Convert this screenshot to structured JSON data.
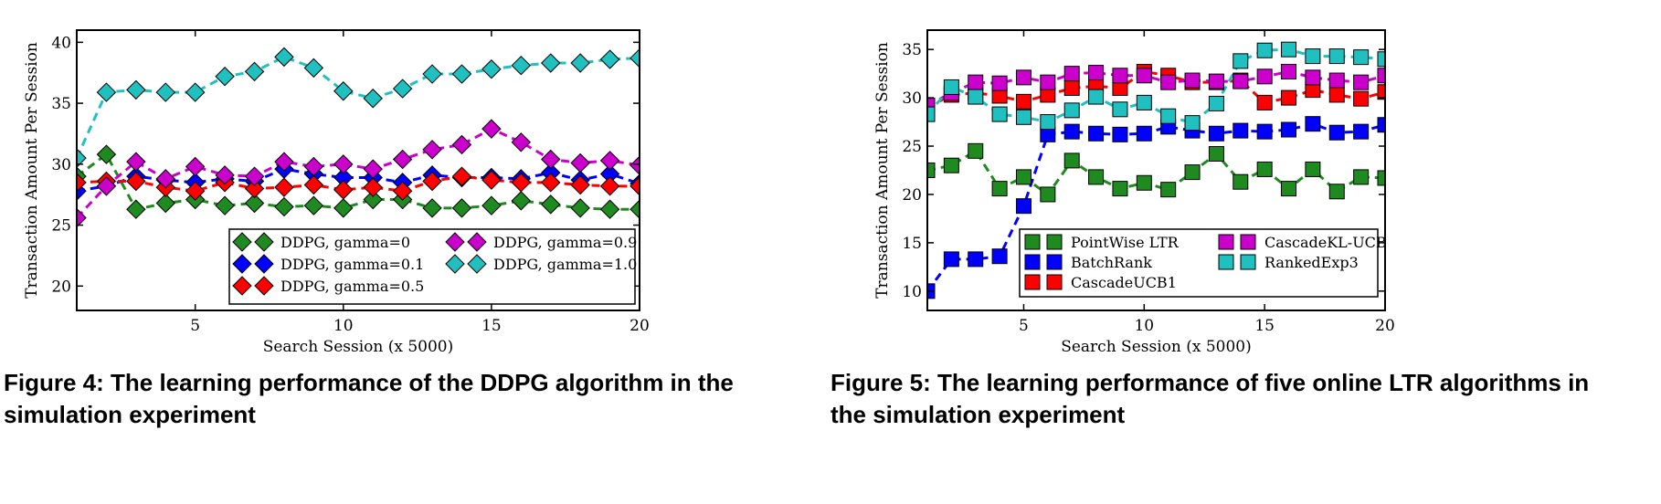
{
  "figures": [
    {
      "caption": "Figure 4: The learning performance of the DDPG algorithm in the simulation experiment"
    },
    {
      "caption": "Figure 5: The learning performance of five online LTR algorithms in the simulation experiment"
    }
  ],
  "chart_data": [
    {
      "type": "line",
      "marker": "diamond",
      "xlabel": "Search Session (x 5000)",
      "ylabel": "Transaction Amount Per Session",
      "xlim": [
        1,
        20
      ],
      "ylim": [
        18,
        41
      ],
      "xticks": [
        5,
        10,
        15,
        20
      ],
      "yticks": [
        20,
        25,
        30,
        35,
        40
      ],
      "grid": false,
      "legend_position": "lower-right",
      "legend_columns": 2,
      "x": [
        1,
        2,
        3,
        4,
        5,
        6,
        7,
        8,
        9,
        10,
        11,
        12,
        13,
        14,
        15,
        16,
        17,
        18,
        19,
        20
      ],
      "series": [
        {
          "name": "DDPG, gamma=0",
          "color": "#1f8a1f",
          "values": [
            29.0,
            30.8,
            26.3,
            26.8,
            27.1,
            26.6,
            26.8,
            26.5,
            26.6,
            26.4,
            27.1,
            27.1,
            26.4,
            26.4,
            26.6,
            27.0,
            26.7,
            26.4,
            26.3,
            26.3
          ]
        },
        {
          "name": "DDPG, gamma=0.1",
          "color": "#0000ff",
          "values": [
            27.8,
            28.2,
            29.0,
            28.7,
            28.5,
            28.8,
            28.6,
            29.6,
            29.2,
            28.9,
            28.9,
            28.5,
            29.1,
            28.9,
            28.9,
            28.8,
            29.3,
            28.7,
            29.2,
            28.4
          ]
        },
        {
          "name": "DDPG, gamma=0.5",
          "color": "#ff0000",
          "values": [
            28.5,
            28.6,
            28.6,
            28.1,
            27.8,
            28.5,
            28.0,
            28.1,
            28.3,
            27.9,
            28.1,
            27.8,
            28.6,
            29.0,
            28.7,
            28.5,
            28.5,
            28.3,
            28.2,
            28.2
          ]
        },
        {
          "name": "DDPG, gamma=0.9",
          "color": "#cc00cc",
          "values": [
            25.6,
            28.2,
            30.2,
            28.8,
            29.8,
            29.1,
            29.0,
            30.2,
            29.8,
            30.0,
            29.6,
            30.4,
            31.2,
            31.6,
            32.9,
            31.8,
            30.4,
            30.1,
            30.3,
            29.9
          ]
        },
        {
          "name": "DDPG, gamma=1.0",
          "color": "#20c0c0",
          "values": [
            30.5,
            35.9,
            36.1,
            35.9,
            35.9,
            37.2,
            37.6,
            38.8,
            37.9,
            36.0,
            35.4,
            36.2,
            37.4,
            37.4,
            37.8,
            38.1,
            38.3,
            38.3,
            38.6,
            38.7
          ]
        }
      ]
    },
    {
      "type": "line",
      "marker": "square",
      "xlabel": "Search Session (x 5000)",
      "ylabel": "Transaction Amount Per Session",
      "xlim": [
        1,
        20
      ],
      "ylim": [
        8,
        37
      ],
      "xticks": [
        5,
        10,
        15,
        20
      ],
      "yticks": [
        10,
        15,
        20,
        25,
        30,
        35
      ],
      "grid": false,
      "legend_position": "lower-right",
      "legend_columns": 2,
      "x": [
        1,
        2,
        3,
        4,
        5,
        6,
        7,
        8,
        9,
        10,
        11,
        12,
        13,
        14,
        15,
        16,
        17,
        18,
        19,
        20
      ],
      "series": [
        {
          "name": "PointWise LTR",
          "color": "#1f8a1f",
          "values": [
            22.5,
            23.0,
            24.5,
            20.6,
            21.8,
            20.0,
            23.5,
            21.8,
            20.6,
            21.2,
            20.5,
            22.3,
            24.2,
            21.3,
            22.6,
            20.6,
            22.6,
            20.3,
            21.8,
            21.7
          ]
        },
        {
          "name": "BatchRank",
          "color": "#0000ff",
          "values": [
            10.0,
            13.3,
            13.3,
            13.6,
            18.8,
            26.2,
            26.5,
            26.3,
            26.2,
            26.3,
            27.0,
            26.6,
            26.3,
            26.6,
            26.5,
            26.7,
            27.3,
            26.4,
            26.5,
            27.2
          ]
        },
        {
          "name": "CascadeUCB1",
          "color": "#ff0000",
          "values": [
            29.0,
            30.3,
            30.5,
            30.2,
            29.6,
            30.3,
            31.0,
            31.2,
            31.0,
            32.7,
            32.3,
            31.6,
            31.6,
            31.8,
            29.5,
            30.0,
            30.8,
            30.3,
            29.9,
            30.6
          ]
        },
        {
          "name": "CascadeKL-UCB",
          "color": "#cc00cc",
          "values": [
            29.2,
            30.5,
            31.6,
            31.5,
            32.1,
            31.6,
            32.5,
            32.6,
            32.3,
            32.3,
            31.6,
            31.8,
            31.7,
            31.7,
            32.2,
            32.7,
            32.1,
            31.8,
            31.6,
            32.3
          ]
        },
        {
          "name": "RankedExp3",
          "color": "#20c0c0",
          "values": [
            28.3,
            31.1,
            30.1,
            28.3,
            28.0,
            27.5,
            28.7,
            30.1,
            28.8,
            29.5,
            28.1,
            27.4,
            29.4,
            33.8,
            34.9,
            35.0,
            34.3,
            34.3,
            34.2,
            34.0
          ]
        }
      ]
    }
  ]
}
